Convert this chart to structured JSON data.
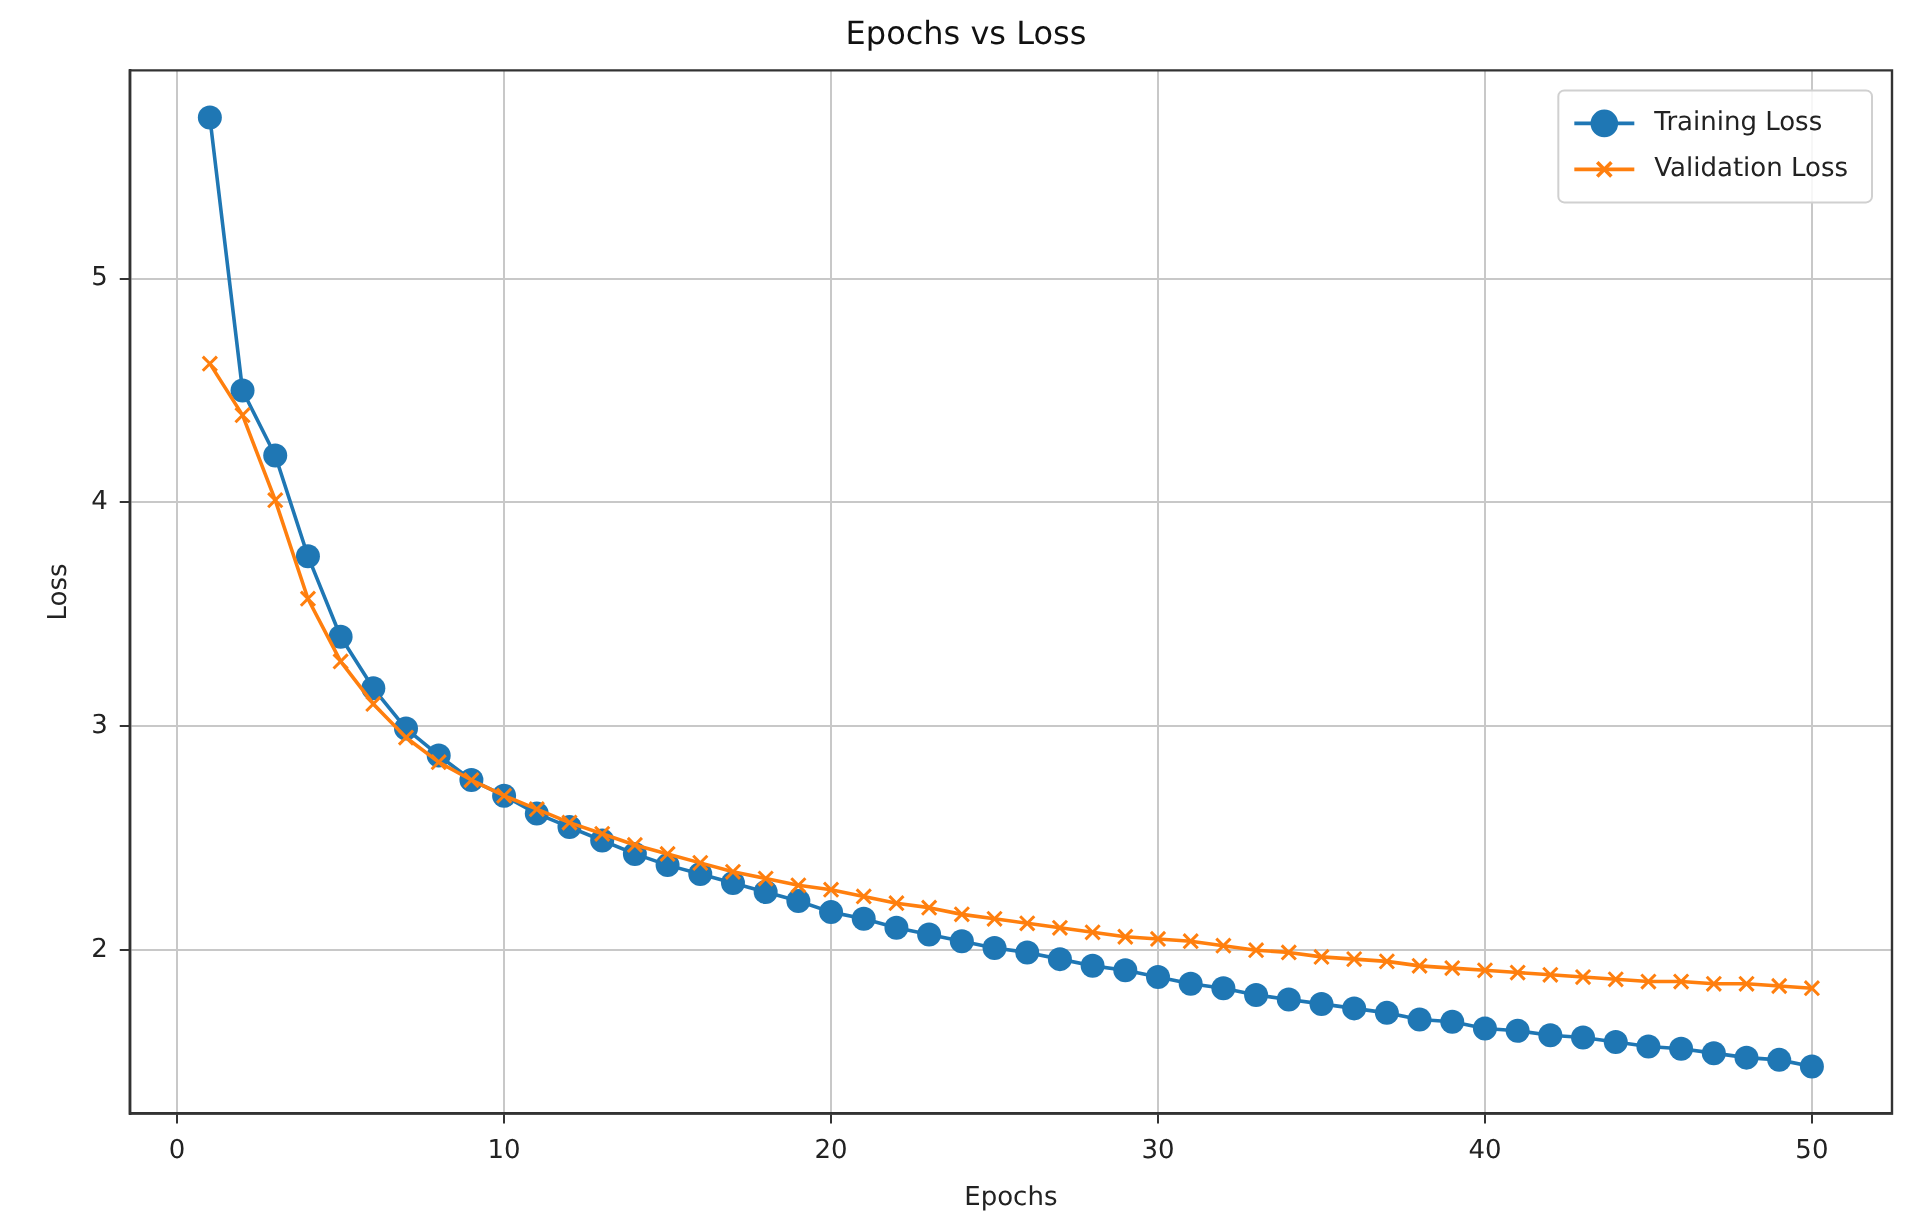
{
  "chart_data": {
    "type": "line",
    "title": "Epochs vs Loss",
    "xlabel": "Epochs",
    "ylabel": "Loss",
    "x": [
      1,
      2,
      3,
      4,
      5,
      6,
      7,
      8,
      9,
      10,
      11,
      12,
      13,
      14,
      15,
      16,
      17,
      18,
      19,
      20,
      21,
      22,
      23,
      24,
      25,
      26,
      27,
      28,
      29,
      30,
      31,
      32,
      33,
      34,
      35,
      36,
      37,
      38,
      39,
      40,
      41,
      42,
      43,
      44,
      45,
      46,
      47,
      48,
      49,
      50
    ],
    "series": [
      {
        "name": "Training Loss",
        "color": "#1f77b4",
        "marker": "circle",
        "values": [
          5.72,
          4.5,
          4.21,
          3.76,
          3.4,
          3.17,
          2.99,
          2.87,
          2.76,
          2.69,
          2.61,
          2.55,
          2.49,
          2.43,
          2.38,
          2.34,
          2.3,
          2.26,
          2.22,
          2.17,
          2.14,
          2.1,
          2.07,
          2.04,
          2.01,
          1.99,
          1.96,
          1.93,
          1.91,
          1.88,
          1.85,
          1.83,
          1.8,
          1.78,
          1.76,
          1.74,
          1.72,
          1.69,
          1.68,
          1.65,
          1.64,
          1.62,
          1.61,
          1.59,
          1.57,
          1.56,
          1.54,
          1.52,
          1.51,
          1.48
        ]
      },
      {
        "name": "Validation Loss",
        "color": "#ff7f0e",
        "marker": "cross",
        "values": [
          4.62,
          4.39,
          4.01,
          3.57,
          3.29,
          3.1,
          2.95,
          2.84,
          2.76,
          2.69,
          2.63,
          2.57,
          2.52,
          2.47,
          2.43,
          2.39,
          2.35,
          2.32,
          2.29,
          2.27,
          2.24,
          2.21,
          2.19,
          2.16,
          2.14,
          2.12,
          2.1,
          2.08,
          2.06,
          2.05,
          2.04,
          2.02,
          2.0,
          1.99,
          1.97,
          1.96,
          1.95,
          1.93,
          1.92,
          1.91,
          1.9,
          1.89,
          1.88,
          1.87,
          1.86,
          1.86,
          1.85,
          1.85,
          1.84,
          1.83
        ]
      }
    ],
    "xlim": [
      -1.45,
      52.45
    ],
    "xticks": [
      0,
      10,
      20,
      30,
      40,
      50
    ],
    "ylim": [
      1.27,
      5.93
    ],
    "yticks": [
      2,
      3,
      4,
      5
    ],
    "grid": true,
    "legend": "top right",
    "line_style": "solid"
  }
}
